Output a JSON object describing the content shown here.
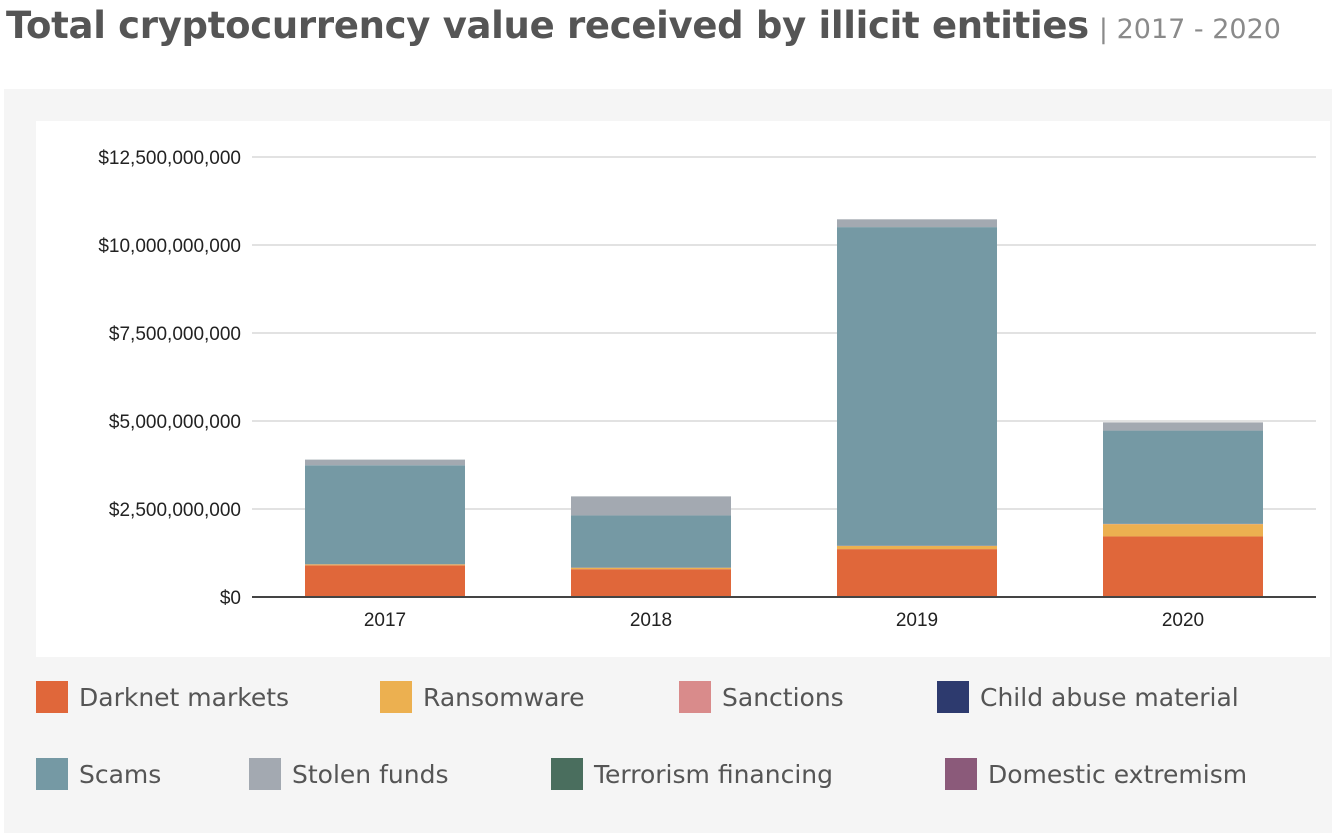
{
  "title": "Total cryptocurrency value received by illicit entities",
  "subtitle": "| 2017 - 2020",
  "colors": {
    "Darknet markets": "#e0673a",
    "Ransomware": "#ecb050",
    "Sanctions": "#d98b8b",
    "Child abuse material": "#2d3a6e",
    "Scams": "#7599a4",
    "Stolen funds": "#a3a9b1",
    "Terrorism financing": "#4a6e5e",
    "Domestic extremism": "#8b5a7a",
    "grid": "#d9d9d9",
    "axis": "#444444"
  },
  "legend": [
    {
      "label": "Darknet markets",
      "color": "#e0673a"
    },
    {
      "label": "Ransomware",
      "color": "#ecb050"
    },
    {
      "label": "Sanctions",
      "color": "#d98b8b"
    },
    {
      "label": "Child abuse material",
      "color": "#2d3a6e"
    },
    {
      "label": "Scams",
      "color": "#7599a4"
    },
    {
      "label": "Stolen funds",
      "color": "#a3a9b1"
    },
    {
      "label": "Terrorism financing",
      "color": "#4a6e5e"
    },
    {
      "label": "Domestic extremism",
      "color": "#8b5a7a"
    }
  ],
  "chart_data": {
    "type": "bar",
    "stacked": true,
    "categories": [
      "2017",
      "2018",
      "2019",
      "2020"
    ],
    "ylim": [
      0,
      12500000000
    ],
    "yticks": [
      0,
      2500000000,
      5000000000,
      7500000000,
      10000000000,
      12500000000
    ],
    "ytick_labels": [
      "$0",
      "$2,500,000,000",
      "$5,000,000,000",
      "$7,500,000,000",
      "$10,000,000,000",
      "$12,500,000,000"
    ],
    "grid": true,
    "legend_position": "bottom",
    "series": [
      {
        "name": "Darknet markets",
        "values": [
          900000000,
          790000000,
          1360000000,
          1720000000
        ]
      },
      {
        "name": "Ransomware",
        "values": [
          25000000,
          40000000,
          90000000,
          350000000
        ]
      },
      {
        "name": "Sanctions",
        "values": [
          5000000,
          5000000,
          5000000,
          5000000
        ]
      },
      {
        "name": "Child abuse material",
        "values": [
          2000000,
          2000000,
          3000000,
          3000000
        ]
      },
      {
        "name": "Scams",
        "values": [
          2810000000,
          1480000000,
          9050000000,
          2650000000
        ]
      },
      {
        "name": "Stolen funds",
        "values": [
          160000000,
          540000000,
          220000000,
          230000000
        ]
      },
      {
        "name": "Terrorism financing",
        "values": [
          1000000,
          1000000,
          1000000,
          1000000
        ]
      },
      {
        "name": "Domestic extremism",
        "values": [
          0,
          0,
          0,
          1000000
        ]
      }
    ]
  }
}
